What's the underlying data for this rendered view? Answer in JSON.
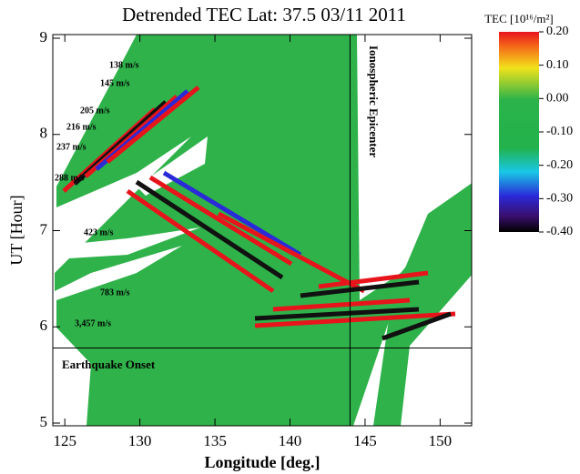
{
  "chart_data": {
    "type": "image",
    "title": "Detrended TEC  Lat: 37.5  03/11 2011",
    "x_label": "Longitude [deg.]",
    "y_label": "UT [Hour]",
    "xlim": [
      124.2,
      152.1
    ],
    "ylim": [
      5,
      9
    ],
    "xticks": [
      125,
      130,
      135,
      140,
      145,
      150
    ],
    "yticks": [
      5,
      6,
      7,
      8,
      9
    ],
    "colorbar": {
      "title": "TEC [10¹⁶/m²]",
      "clim": [
        -0.4,
        0.2
      ],
      "ticks": [
        {
          "value": 0.2,
          "label": "0.20"
        },
        {
          "value": 0.1,
          "label": "0.10"
        },
        {
          "value": 0,
          "label": "0.00"
        },
        {
          "value": -0.1,
          "label": "-0.10"
        },
        {
          "value": -0.2,
          "label": "-0.20"
        },
        {
          "value": -0.3,
          "label": "-0.30"
        },
        {
          "value": -0.4,
          "label": "-0.40"
        }
      ]
    },
    "epicenter_longitude": 144,
    "epicenter_label": "Ionospheric Epicenter",
    "onset_ut": 5.78,
    "onset_label": "Earthquake Onset",
    "annotations": [
      "138 m/s",
      "145 m/s",
      "205 m/s",
      "216 m/s",
      "237 m/s",
      "288 m/s",
      "423 m/s",
      "783 m/s",
      "3,457 m/s"
    ]
  }
}
